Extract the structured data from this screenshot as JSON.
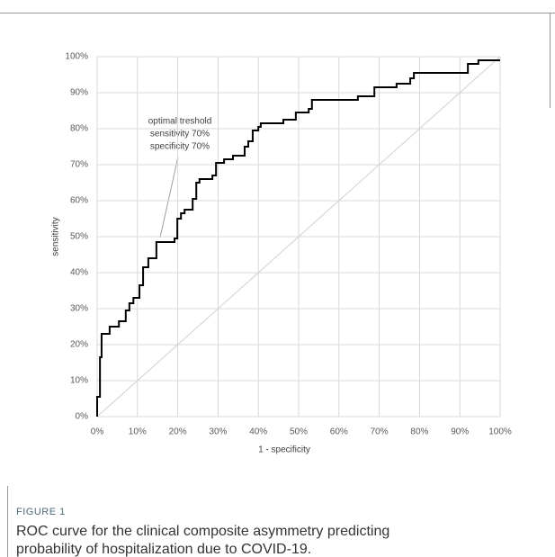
{
  "figure_label": "FIGURE 1",
  "caption": [
    "ROC curve for the clinical composite asymmetry predicting",
    "probability of hospitalization due to COVID-19."
  ],
  "chart_data": {
    "type": "line",
    "xlabel": "1 - specificity",
    "ylabel": "sensitivity",
    "annotation": [
      "optimal treshold",
      "sensitivity 70%",
      "specificity 70%"
    ],
    "xlim": [
      0,
      100
    ],
    "ylim": [
      0,
      100
    ],
    "grid": true,
    "xticks": [
      {
        "value": 0,
        "label": "0%"
      },
      {
        "value": 10,
        "label": "10%"
      },
      {
        "value": 20,
        "label": "20%"
      },
      {
        "value": 30,
        "label": "30%"
      },
      {
        "value": 40,
        "label": "40%"
      },
      {
        "value": 50,
        "label": "50%"
      },
      {
        "value": 60,
        "label": "60%"
      },
      {
        "value": 70,
        "label": "70%"
      },
      {
        "value": 80,
        "label": "80%"
      },
      {
        "value": 90,
        "label": "90%"
      },
      {
        "value": 100,
        "label": "100%"
      }
    ],
    "yticks": [
      {
        "value": 0,
        "label": "0%"
      },
      {
        "value": 10,
        "label": "10%"
      },
      {
        "value": 20,
        "label": "20%"
      },
      {
        "value": 30,
        "label": "30%"
      },
      {
        "value": 40,
        "label": "40%"
      },
      {
        "value": 50,
        "label": "50%"
      },
      {
        "value": 60,
        "label": "60%"
      },
      {
        "value": 70,
        "label": "70%"
      },
      {
        "value": 80,
        "label": "80%"
      },
      {
        "value": 90,
        "label": "90%"
      },
      {
        "value": 100,
        "label": "100%"
      }
    ],
    "series": [
      {
        "color": "#000000",
        "width": 2,
        "x": [
          0,
          0,
          0.7,
          0.7,
          1.1,
          1.1,
          3.1,
          3.1,
          5.4,
          5.4,
          7.1,
          7.1,
          8,
          8,
          9,
          9,
          10.5,
          10.5,
          11.4,
          11.4,
          12.7,
          12.7,
          14.7,
          14.7,
          19.2,
          19.2,
          19.9,
          19.9,
          20.8,
          20.8,
          21.7,
          21.7,
          23.7,
          23.7,
          24.6,
          24.6,
          25.4,
          25.4,
          28.6,
          28.6,
          29.5,
          29.5,
          31.5,
          31.5,
          33.7,
          33.7,
          36.6,
          36.6,
          37.5,
          37.5,
          38.6,
          38.6,
          40,
          40,
          40.6,
          40.6,
          46.2,
          46.2,
          49.3,
          49.3,
          52.5,
          52.5,
          53.3,
          53.3,
          64.7,
          64.7,
          68.8,
          68.8,
          74.3,
          74.3,
          77.7,
          77.7,
          78.6,
          78.6,
          92,
          92,
          94.6,
          94.6,
          100
        ],
        "values": [
          0,
          5.5,
          5.5,
          16.5,
          16.5,
          23,
          23,
          25,
          25,
          26.5,
          26.5,
          29.5,
          29.5,
          31.5,
          31.5,
          33,
          33,
          36.5,
          36.5,
          41.5,
          41.5,
          44,
          44,
          48.5,
          48.5,
          49.5,
          49.5,
          55,
          55,
          56.5,
          56.5,
          57.5,
          57.5,
          60.5,
          60.5,
          65,
          65,
          66,
          66,
          67,
          67,
          70.5,
          70.5,
          71.5,
          71.5,
          72.5,
          72.5,
          75,
          75,
          76.5,
          76.5,
          79.5,
          79.5,
          80.5,
          80.5,
          81.5,
          81.5,
          82.5,
          82.5,
          84.5,
          84.5,
          85.5,
          85.5,
          88,
          88,
          89,
          89,
          91.5,
          91.5,
          92.5,
          92.5,
          94,
          94,
          95.5,
          95.5,
          98,
          98,
          99,
          99
        ]
      },
      {
        "color": "#d0d0d0",
        "width": 1,
        "x": [
          0,
          100
        ],
        "values": [
          0,
          100
        ]
      }
    ]
  }
}
